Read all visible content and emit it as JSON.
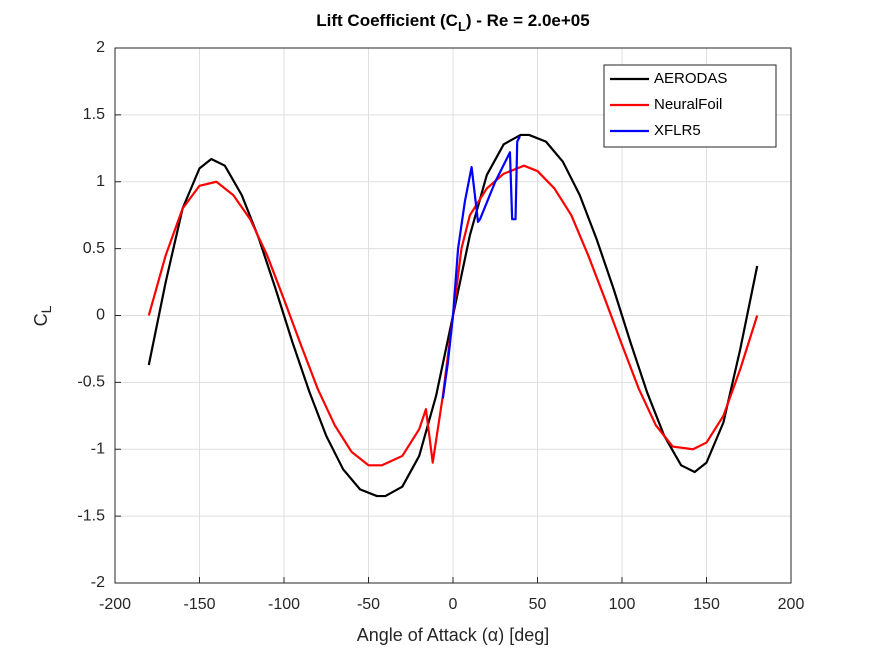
{
  "chart_data": {
    "type": "line",
    "title": [
      "Lift Coefficient (C",
      "L",
      ") - Re = 2.0e+05"
    ],
    "xlabel": "Angle of Attack (α) [deg]",
    "ylabel": [
      "C",
      "L"
    ],
    "xlim": [
      -200,
      200
    ],
    "xticks": [
      -200,
      -150,
      -100,
      -50,
      0,
      50,
      100,
      150,
      200
    ],
    "ylim": [
      -2,
      2
    ],
    "yticks": [
      -2,
      -1.5,
      -1,
      -0.5,
      0,
      0.5,
      1,
      1.5,
      2
    ],
    "grid": true,
    "legend": "top-right",
    "series": [
      {
        "name": "AERODAS",
        "color": "#000000",
        "x": [
          -180,
          -170,
          -160,
          -150,
          -143,
          -135,
          -125,
          -115,
          -105,
          -95,
          -85,
          -75,
          -65,
          -55,
          -45,
          -40,
          -30,
          -20,
          -10,
          0,
          10,
          20,
          30,
          40,
          45,
          55,
          65,
          75,
          85,
          95,
          105,
          115,
          125,
          135,
          143,
          150,
          160,
          170,
          180
        ],
        "values": [
          -0.37,
          0.25,
          0.8,
          1.1,
          1.17,
          1.12,
          0.9,
          0.58,
          0.2,
          -0.2,
          -0.57,
          -0.9,
          -1.15,
          -1.3,
          -1.35,
          -1.35,
          -1.28,
          -1.05,
          -0.6,
          0,
          0.6,
          1.05,
          1.28,
          1.35,
          1.35,
          1.3,
          1.15,
          0.9,
          0.57,
          0.2,
          -0.2,
          -0.58,
          -0.9,
          -1.12,
          -1.17,
          -1.1,
          -0.8,
          -0.25,
          0.37
        ]
      },
      {
        "name": "NeuralFoil",
        "color": "#ff0000",
        "x": [
          -180,
          -170,
          -160,
          -150,
          -140,
          -130,
          -120,
          -110,
          -100,
          -90,
          -80,
          -70,
          -60,
          -50,
          -42,
          -30,
          -20,
          -16,
          -12,
          -6,
          0,
          5,
          10,
          20,
          30,
          42,
          50,
          60,
          70,
          80,
          90,
          100,
          110,
          120,
          130,
          142,
          150,
          160,
          170,
          180
        ],
        "values": [
          0,
          0.45,
          0.8,
          0.97,
          1.0,
          0.9,
          0.72,
          0.45,
          0.12,
          -0.22,
          -0.55,
          -0.82,
          -1.02,
          -1.12,
          -1.12,
          -1.05,
          -0.85,
          -0.7,
          -1.1,
          -0.6,
          0,
          0.5,
          0.75,
          0.95,
          1.06,
          1.12,
          1.08,
          0.95,
          0.75,
          0.45,
          0.12,
          -0.22,
          -0.55,
          -0.82,
          -0.98,
          -1.0,
          -0.95,
          -0.75,
          -0.4,
          0
        ]
      },
      {
        "name": "XFLR5",
        "color": "#0000ff",
        "x": [
          -6,
          -3,
          0,
          3,
          7,
          11,
          14.8,
          16,
          25,
          33.7,
          35,
          37,
          38,
          39.6
        ],
        "values": [
          -0.62,
          -0.35,
          0,
          0.5,
          0.85,
          1.11,
          0.7,
          0.72,
          1.0,
          1.22,
          0.72,
          0.72,
          1.3,
          1.34
        ]
      }
    ]
  }
}
